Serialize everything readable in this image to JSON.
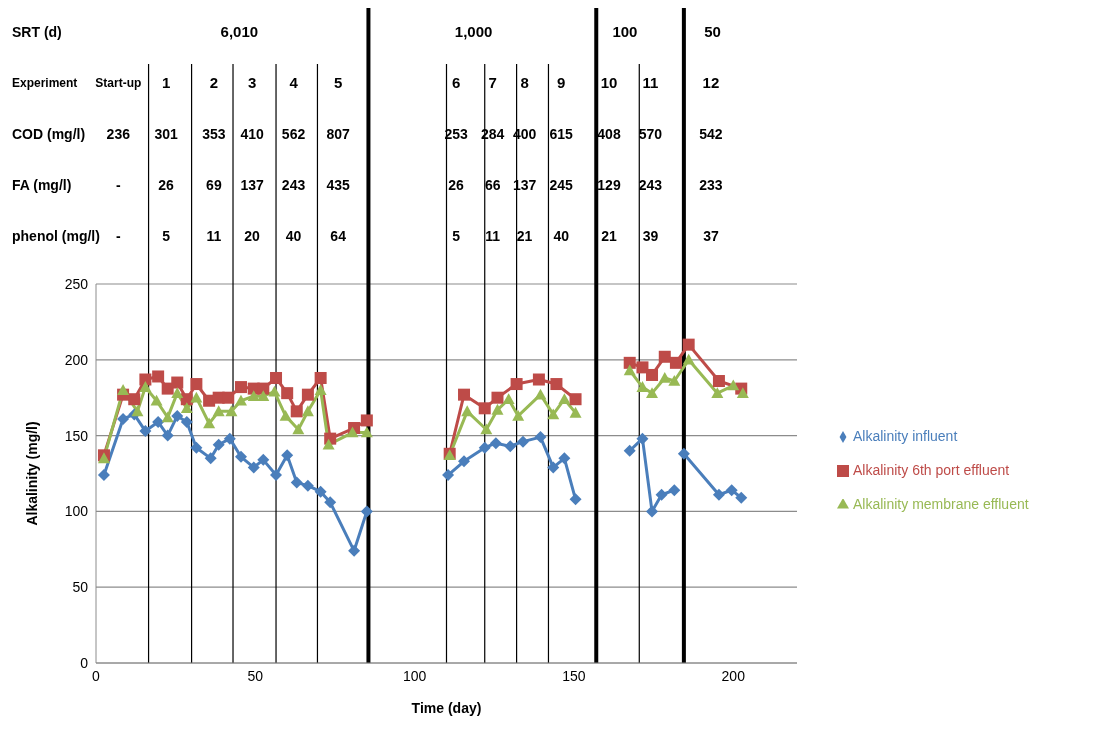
{
  "chart_data": {
    "type": "line",
    "xlabel": "Time (day)",
    "ylabel": "Alkalinity (mg/l)",
    "xlim": [
      0,
      220
    ],
    "xticks": [
      0,
      50,
      100,
      150,
      200
    ],
    "ylim": [
      0,
      250
    ],
    "yticks": [
      0,
      50,
      100,
      150,
      200,
      250
    ],
    "grid": "y",
    "legend": "right",
    "series": [
      {
        "name": "Alkalinity influent",
        "color": "#4a7ebb",
        "marker": "diamond",
        "x": [
          2.5,
          8.5,
          12,
          15.5,
          19.5,
          22.5,
          25.5,
          28.5,
          31.5,
          36,
          38.5,
          42,
          45.5,
          49.5,
          52.5,
          56.5,
          60,
          63,
          66.5,
          70.5,
          73.5,
          81,
          85,
          97,
          110.5,
          115.5,
          122,
          125.5,
          130,
          134,
          139.5,
          143.5,
          147,
          150.5,
          159,
          167.5,
          171.5,
          174.5,
          177.5,
          181.5,
          183,
          184.5,
          195.5,
          199.5,
          202.5
        ],
        "values": [
          124,
          161,
          164,
          153,
          159,
          150,
          163,
          159,
          142,
          135,
          144,
          148,
          136,
          129,
          134,
          124,
          137,
          119,
          117,
          113,
          106,
          74,
          100,
          null,
          124,
          133,
          142,
          145,
          143,
          146,
          149,
          129,
          135,
          108,
          null,
          140,
          148,
          100,
          111,
          114,
          null,
          138,
          111,
          114,
          109
        ]
      },
      {
        "name": "Alkalinity 6th port effluent",
        "color": "#be4b48",
        "marker": "square",
        "x": [
          2.5,
          8.5,
          12,
          15.5,
          19.5,
          22.5,
          25.5,
          28.5,
          31.5,
          35.5,
          38.5,
          41.5,
          45.5,
          49.5,
          52.5,
          56.5,
          60,
          63,
          66.5,
          70.5,
          73.5,
          81,
          85,
          97,
          111,
          115.5,
          122,
          126,
          132,
          139,
          144.5,
          150.5,
          159,
          167.5,
          171.5,
          174.5,
          178.5,
          182,
          186,
          195.5,
          202.5
        ],
        "values": [
          137,
          177,
          174,
          187,
          189,
          181,
          185,
          174,
          184,
          173,
          175,
          175,
          182,
          181,
          181,
          188,
          178,
          166,
          177,
          188,
          148,
          155,
          160,
          null,
          138,
          177,
          168,
          175,
          184,
          187,
          184,
          174,
          null,
          198,
          195,
          190,
          202,
          198,
          210,
          186,
          181
        ]
      },
      {
        "name": "Alkalinity membrane effluent",
        "color": "#98b954",
        "marker": "triangle",
        "x": [
          2.5,
          8.5,
          13,
          15.5,
          19,
          22.5,
          25.5,
          28.5,
          31.5,
          35.5,
          38.5,
          42.5,
          45.5,
          49.5,
          52.5,
          56,
          59.5,
          63.5,
          66.5,
          70.5,
          73,
          80.5,
          85,
          97,
          111,
          116.5,
          122.5,
          126,
          129.5,
          132.5,
          139.5,
          143.5,
          147,
          150.5,
          159,
          167.5,
          171.5,
          174.5,
          178.5,
          181.5,
          186,
          195,
          200,
          203
        ],
        "values": [
          135,
          180,
          166,
          182,
          173,
          162,
          178,
          168,
          175,
          158,
          166,
          166,
          173,
          176,
          176,
          179,
          163,
          154,
          166,
          180,
          144,
          152,
          152,
          null,
          137,
          166,
          154,
          167,
          174,
          163,
          177,
          164,
          174,
          165,
          null,
          193,
          182,
          178,
          188,
          186,
          200,
          178,
          183,
          178
        ]
      }
    ],
    "ref_lines": [
      {
        "axis": "x",
        "value": 85.5
      },
      {
        "axis": "x",
        "value": 157
      },
      {
        "axis": "x",
        "value": 184.5
      },
      {
        "axis": "x",
        "value": 16.5
      },
      {
        "axis": "x",
        "value": 30
      },
      {
        "axis": "x",
        "value": 43
      },
      {
        "axis": "x",
        "value": 56.5
      },
      {
        "axis": "x",
        "value": 69.5
      },
      {
        "axis": "x",
        "value": 110
      },
      {
        "axis": "x",
        "value": 122
      },
      {
        "axis": "x",
        "value": 132
      },
      {
        "axis": "x",
        "value": 142
      },
      {
        "axis": "x",
        "value": 170.5
      }
    ],
    "annotations": [
      "SRT (d)",
      "6,010",
      "1,000",
      "100",
      "50",
      "Experiment",
      "Start-up",
      "1",
      "2",
      "3",
      "4",
      "5",
      "6",
      "7",
      "8",
      "9",
      "10",
      "11",
      "12",
      "COD (mg/l)",
      "236",
      "301",
      "353",
      "410",
      "562",
      "807",
      "253",
      "284",
      "400",
      "615",
      "408",
      "570",
      "542",
      "FA (mg/l)",
      "-",
      "26",
      "69",
      "137",
      "243",
      "435",
      "26",
      "66",
      "137",
      "245",
      "129",
      "243",
      "233",
      "phenol (mg/l)",
      "-",
      "5",
      "11",
      "20",
      "40",
      "64",
      "5",
      "11",
      "21",
      "40",
      "21",
      "39",
      "37"
    ]
  }
}
